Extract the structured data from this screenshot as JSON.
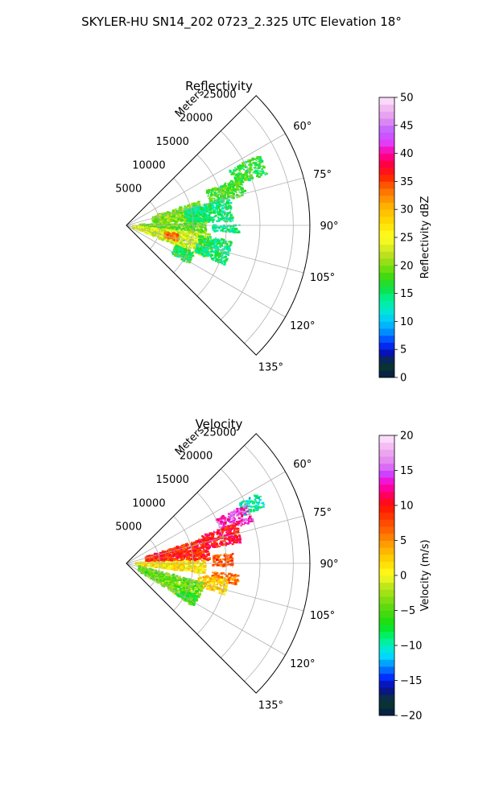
{
  "figure": {
    "title": "SKYLER-HU  SN14_202  0723_2.325 UTC Elevation 18°"
  },
  "chart_data": [
    {
      "type": "heatmap",
      "projection": "polar-sector",
      "title": "Reflectivity",
      "radial_axis_label": "Meters",
      "radial_ticks": [
        5000,
        10000,
        15000,
        20000,
        25000
      ],
      "radial_tick_labels": [
        "5000",
        "10000",
        "15000",
        "20000",
        "25000"
      ],
      "rlim": [
        0,
        27500
      ],
      "angular_ticks": [
        60,
        75,
        90,
        105,
        120,
        135
      ],
      "angular_tick_labels": [
        "60°",
        "75°",
        "90°",
        "105°",
        "120°",
        "135°"
      ],
      "azimuth_range": [
        45,
        135
      ],
      "grid": true,
      "colorbar": {
        "label": "Reflectivity dBZ",
        "range": [
          0,
          50
        ],
        "ticks": [
          0,
          5,
          10,
          15,
          20,
          25,
          30,
          35,
          40,
          45,
          50
        ],
        "tick_labels": [
          "0",
          "5",
          "10",
          "15",
          "20",
          "25",
          "30",
          "35",
          "40",
          "45",
          "50"
        ]
      },
      "regions": [
        {
          "az": [
            62,
            70
          ],
          "r": [
            17500,
            22500
          ],
          "value": 17
        },
        {
          "az": [
            67,
            76
          ],
          "r": [
            13000,
            18500
          ],
          "value": 18
        },
        {
          "az": [
            72,
            87
          ],
          "r": [
            4000,
            11500
          ],
          "value": 20
        },
        {
          "az": [
            75,
            88
          ],
          "r": [
            9000,
            16000
          ],
          "value": 15
        },
        {
          "az": [
            88,
            96
          ],
          "r": [
            2000,
            12000
          ],
          "value": 19
        },
        {
          "az": [
            90,
            94
          ],
          "r": [
            13000,
            17000
          ],
          "value": 14
        },
        {
          "az": [
            96,
            112
          ],
          "r": [
            1000,
            13000
          ],
          "value": 23
        },
        {
          "az": [
            98,
            112
          ],
          "r": [
            11000,
            16000
          ],
          "value": 15
        },
        {
          "az": [
            112,
            122
          ],
          "r": [
            8000,
            11000
          ],
          "value": 16
        },
        {
          "az": [
            100,
            108
          ],
          "r": [
            6000,
            8000
          ],
          "value": 33
        }
      ]
    },
    {
      "type": "heatmap",
      "projection": "polar-sector",
      "title": "Velocity",
      "radial_axis_label": "Meters",
      "radial_ticks": [
        5000,
        10000,
        15000,
        20000,
        25000
      ],
      "radial_tick_labels": [
        "5000",
        "10000",
        "15000",
        "20000",
        "25000"
      ],
      "rlim": [
        0,
        27500
      ],
      "angular_ticks": [
        60,
        75,
        90,
        105,
        120,
        135
      ],
      "angular_tick_labels": [
        "60°",
        "75°",
        "90°",
        "105°",
        "120°",
        "135°"
      ],
      "azimuth_range": [
        45,
        135
      ],
      "grid": true,
      "colorbar": {
        "label": "Velocity (m/s)",
        "range": [
          -20,
          20
        ],
        "ticks": [
          -20,
          -15,
          -10,
          -5,
          0,
          5,
          10,
          15,
          20
        ],
        "tick_labels": [
          "−20",
          "−15",
          "−10",
          "−5",
          "0",
          "5",
          "10",
          "15",
          "20"
        ]
      },
      "regions": [
        {
          "az": [
            62,
            68
          ],
          "r": [
            19000,
            22500
          ],
          "value": -10
        },
        {
          "az": [
            64,
            72
          ],
          "r": [
            15000,
            20000
          ],
          "value": 14
        },
        {
          "az": [
            70,
            80
          ],
          "r": [
            12000,
            17500
          ],
          "value": 10
        },
        {
          "az": [
            72,
            88
          ],
          "r": [
            3000,
            12500
          ],
          "value": 9
        },
        {
          "az": [
            85,
            92
          ],
          "r": [
            13000,
            16000
          ],
          "value": 7
        },
        {
          "az": [
            88,
            98
          ],
          "r": [
            1500,
            12000
          ],
          "value": 1
        },
        {
          "az": [
            96,
            101
          ],
          "r": [
            13000,
            17000
          ],
          "value": 6
        },
        {
          "az": [
            99,
            108
          ],
          "r": [
            11000,
            15500
          ],
          "value": 2
        },
        {
          "az": [
            104,
            122
          ],
          "r": [
            2000,
            12000
          ],
          "value": -4
        },
        {
          "az": [
            115,
            123
          ],
          "r": [
            9000,
            12000
          ],
          "value": -6
        }
      ]
    }
  ]
}
